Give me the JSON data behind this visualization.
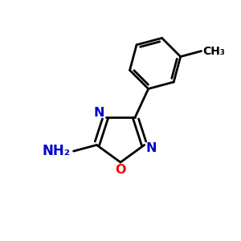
{
  "background_color": "#ffffff",
  "bond_color": "#000000",
  "nitrogen_color": "#0000cc",
  "oxygen_color": "#ff0000",
  "line_width": 2.0,
  "figsize": [
    3.0,
    3.0
  ],
  "dpi": 100,
  "xlim": [
    0,
    10
  ],
  "ylim": [
    0,
    10
  ]
}
